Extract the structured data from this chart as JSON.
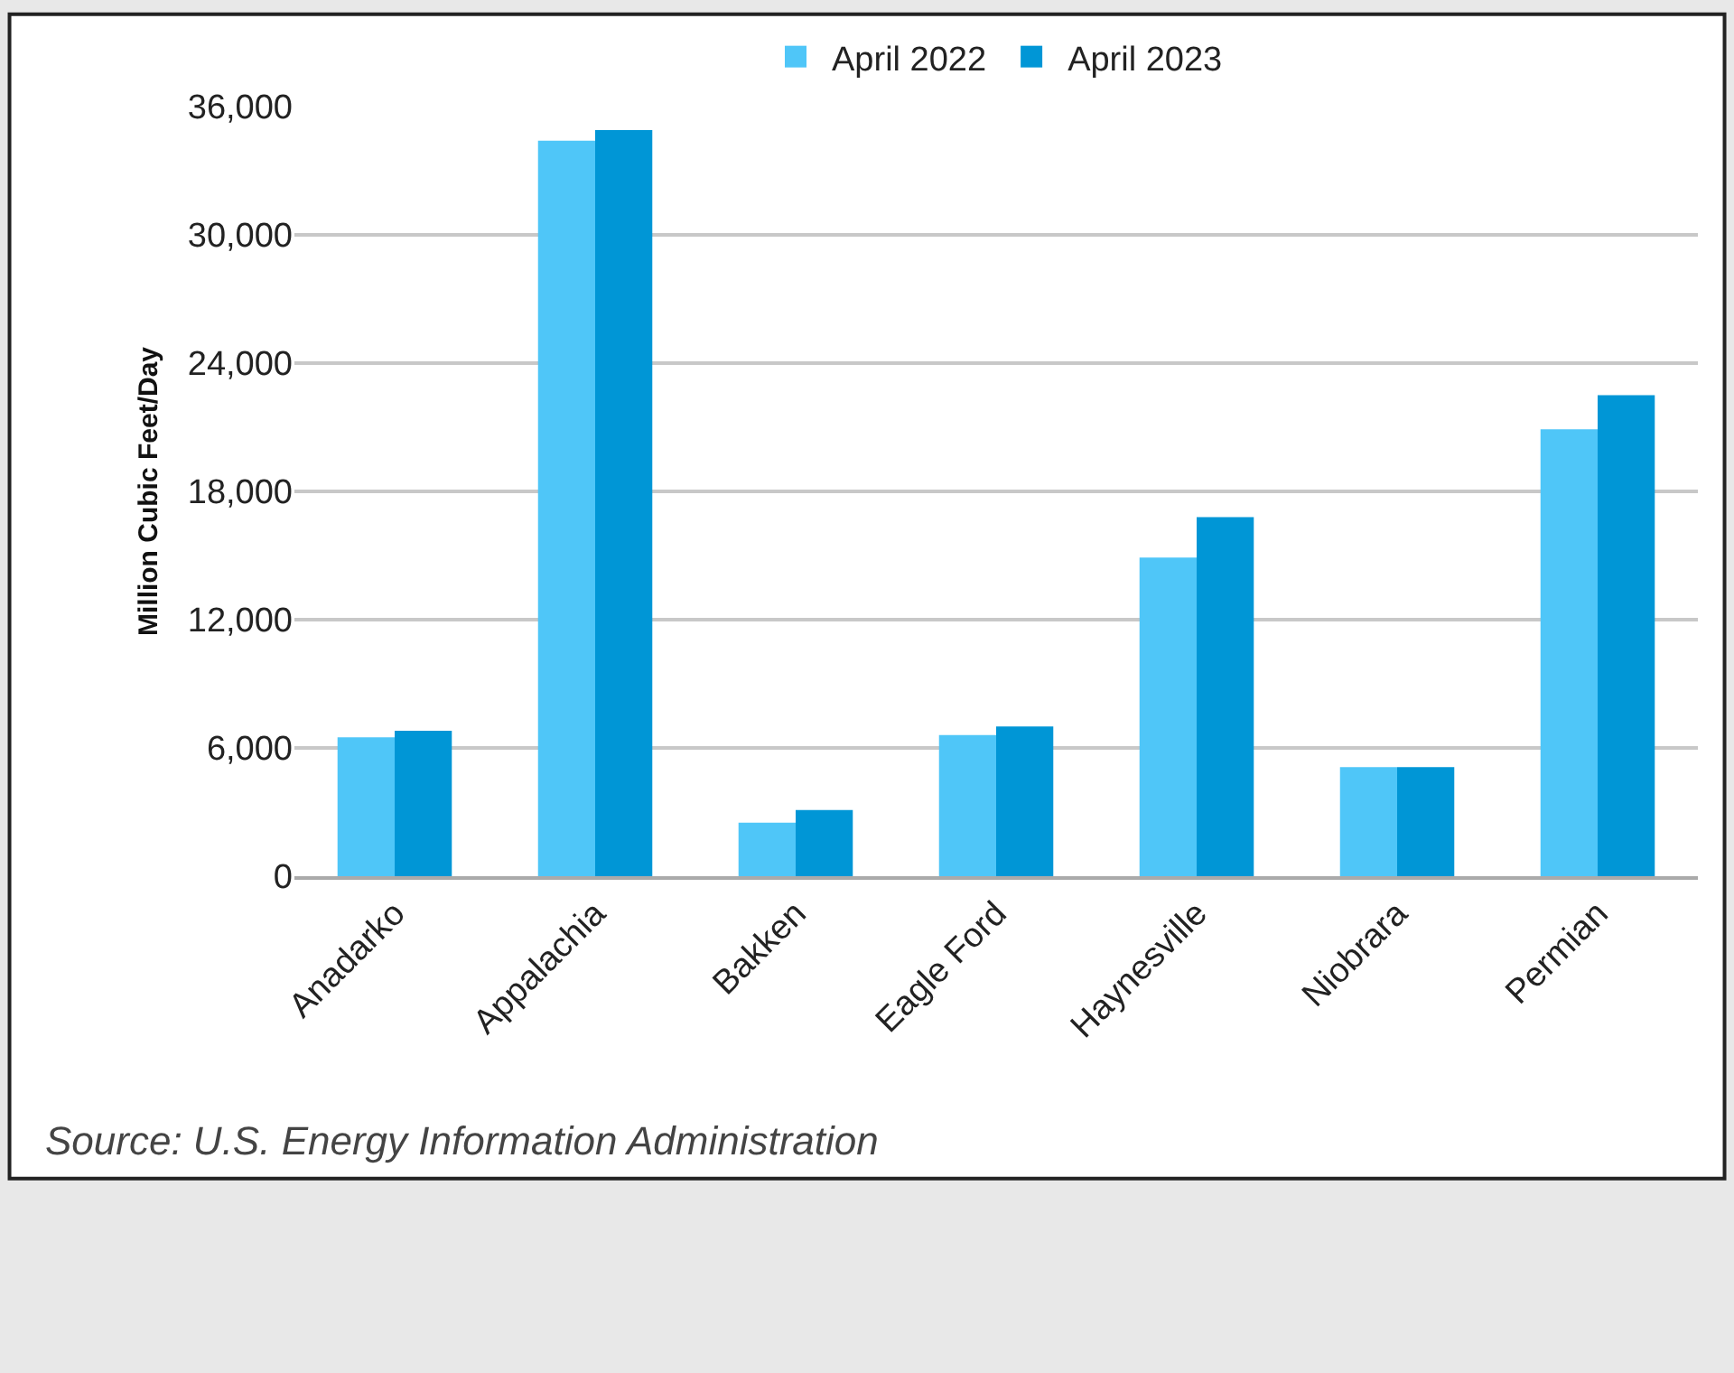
{
  "chart_data": {
    "type": "bar",
    "categories": [
      "Anadarko",
      "Appalachia",
      "Bakken",
      "Eagle Ford",
      "Haynesville",
      "Niobrara",
      "Permian"
    ],
    "series": [
      {
        "name": "April 2022",
        "color": "#4fc6f8",
        "values": [
          6500,
          34400,
          2500,
          6600,
          14900,
          5100,
          20900
        ]
      },
      {
        "name": "April 2023",
        "color": "#0096d6",
        "values": [
          6800,
          34900,
          3100,
          7000,
          16800,
          5100,
          22500
        ]
      }
    ],
    "ylabel": "Million Cubic Feet/Day",
    "ylim": [
      0,
      36000
    ],
    "yticks": [
      {
        "value": 0,
        "label": "0"
      },
      {
        "value": 6000,
        "label": "6,000"
      },
      {
        "value": 12000,
        "label": "12,000"
      },
      {
        "value": 18000,
        "label": "18,000"
      },
      {
        "value": 24000,
        "label": "24,000"
      },
      {
        "value": 30000,
        "label": "30,000"
      },
      {
        "value": 36000,
        "label": "36,000"
      }
    ],
    "grid": "y",
    "legend": "top",
    "annotations": [
      "Source: U.S. Energy Information Administration"
    ]
  }
}
